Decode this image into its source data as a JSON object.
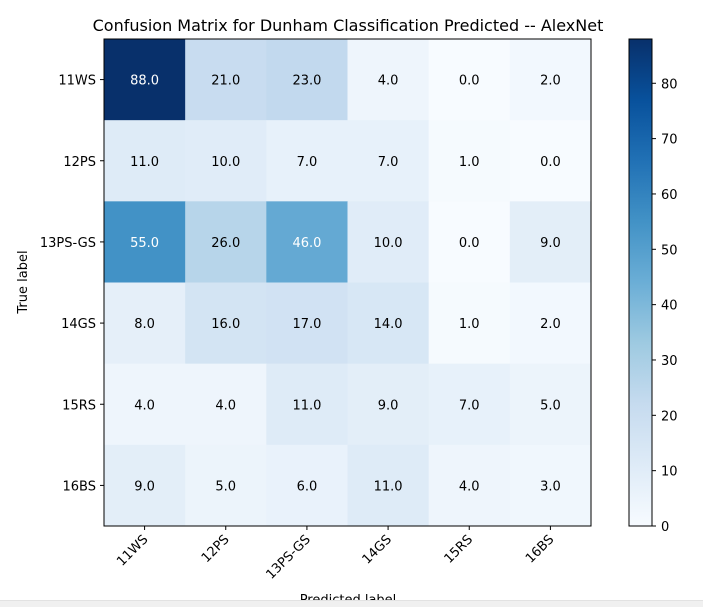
{
  "chart_data": {
    "type": "heatmap",
    "title": "Confusion Matrix for Dunham Classification Predicted -- AlexNet",
    "xlabel": "Predicted label",
    "ylabel": "True label",
    "x_categories": [
      "11WS",
      "12PS",
      "13PS-GS",
      "14GS",
      "15RS",
      "16BS"
    ],
    "y_categories": [
      "11WS",
      "12PS",
      "13PS-GS",
      "14GS",
      "15RS",
      "16BS"
    ],
    "values": [
      [
        88.0,
        21.0,
        23.0,
        4.0,
        0.0,
        2.0
      ],
      [
        11.0,
        10.0,
        7.0,
        7.0,
        1.0,
        0.0
      ],
      [
        55.0,
        26.0,
        46.0,
        10.0,
        0.0,
        9.0
      ],
      [
        8.0,
        16.0,
        17.0,
        14.0,
        1.0,
        2.0
      ],
      [
        4.0,
        4.0,
        11.0,
        9.0,
        7.0,
        5.0
      ],
      [
        9.0,
        5.0,
        6.0,
        11.0,
        4.0,
        3.0
      ]
    ],
    "colormap": "Blues",
    "colorbar": {
      "min": 0,
      "max": 88,
      "ticks": [
        0,
        10,
        20,
        30,
        40,
        50,
        60,
        70,
        80
      ]
    }
  },
  "colors": {
    "low": "#f7fbff",
    "high": "#08306b"
  }
}
